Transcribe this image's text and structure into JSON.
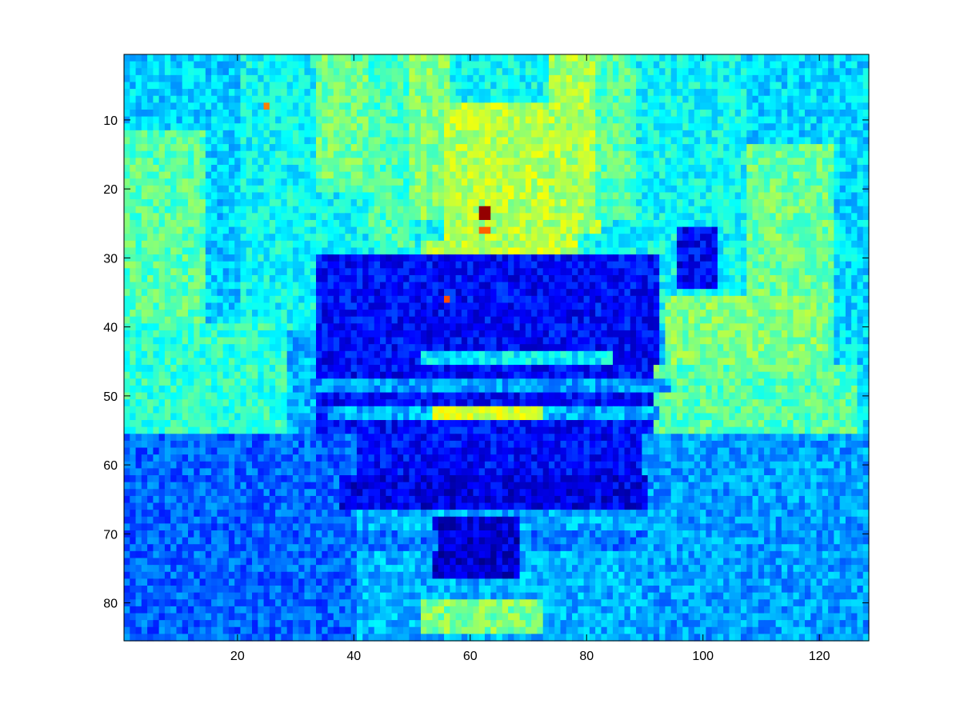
{
  "chart_data": {
    "type": "heatmap",
    "title": "",
    "xlabel": "",
    "ylabel": "",
    "colormap": "jet",
    "xlim": [
      0.5,
      128.5
    ],
    "ylim": [
      85.5,
      0.5
    ],
    "x_ticks": [
      20,
      40,
      60,
      80,
      100,
      120
    ],
    "y_ticks": [
      10,
      20,
      30,
      40,
      50,
      60,
      70,
      80
    ],
    "x_tick_labels": [
      "20",
      "40",
      "60",
      "80",
      "100",
      "120"
    ],
    "y_tick_labels": [
      "10",
      "20",
      "30",
      "40",
      "50",
      "60",
      "70",
      "80"
    ],
    "grid": false,
    "legend": "none",
    "grid_columns": 128,
    "grid_rows": 85,
    "value_range": [
      0,
      1
    ],
    "colors": {
      "axes_frame": "#000000",
      "background": "#ffffff",
      "low_value": "#00008f",
      "high_value": "#800000"
    },
    "scene": {
      "base_value": 0.3,
      "regions": [
        {
          "rows": [
            1,
            40
          ],
          "cols": [
            1,
            128
          ],
          "value": 0.38
        },
        {
          "rows": [
            1,
            85
          ],
          "cols": [
            1,
            20
          ],
          "value": 0.33
        },
        {
          "rows": [
            1,
            85
          ],
          "cols": [
            108,
            128
          ],
          "value": 0.34
        },
        {
          "rows": [
            1,
            20
          ],
          "cols": [
            34,
            43
          ],
          "value": 0.48
        },
        {
          "rows": [
            1,
            28
          ],
          "cols": [
            43,
            50
          ],
          "value": 0.44
        },
        {
          "rows": [
            1,
            24
          ],
          "cols": [
            50,
            56
          ],
          "value": 0.5
        },
        {
          "rows": [
            8,
            30
          ],
          "cols": [
            56,
            78
          ],
          "value": 0.55
        },
        {
          "rows": [
            28,
            38
          ],
          "cols": [
            52,
            74
          ],
          "value": 0.56
        },
        {
          "rows": [
            1,
            26
          ],
          "cols": [
            74,
            82
          ],
          "value": 0.54
        },
        {
          "rows": [
            1,
            24
          ],
          "cols": [
            82,
            88
          ],
          "value": 0.46
        },
        {
          "rows": [
            12,
            40
          ],
          "cols": [
            1,
            14
          ],
          "value": 0.46
        },
        {
          "rows": [
            14,
            46
          ],
          "cols": [
            108,
            122
          ],
          "value": 0.48
        },
        {
          "rows": [
            26,
            34
          ],
          "cols": [
            96,
            102
          ],
          "value": 0.12
        },
        {
          "rows": [
            30,
            62
          ],
          "cols": [
            34,
            92
          ],
          "value": 0.13
        },
        {
          "rows": [
            36,
            48
          ],
          "cols": [
            94,
            120
          ],
          "value": 0.5
        },
        {
          "rows": [
            40,
            56
          ],
          "cols": [
            1,
            28
          ],
          "value": 0.42
        },
        {
          "rows": [
            46,
            58
          ],
          "cols": [
            92,
            126
          ],
          "value": 0.46
        },
        {
          "rows": [
            44,
            45
          ],
          "cols": [
            52,
            84
          ],
          "value": 0.36
        },
        {
          "rows": [
            48,
            49
          ],
          "cols": [
            30,
            94
          ],
          "value": 0.28
        },
        {
          "rows": [
            52,
            53
          ],
          "cols": [
            36,
            92
          ],
          "value": 0.3
        },
        {
          "rows": [
            52,
            53
          ],
          "cols": [
            54,
            72
          ],
          "value": 0.58
        },
        {
          "rows": [
            56,
            85
          ],
          "cols": [
            1,
            40
          ],
          "value": 0.22
        },
        {
          "rows": [
            56,
            85
          ],
          "cols": [
            90,
            128
          ],
          "value": 0.28
        },
        {
          "rows": [
            62,
            66
          ],
          "cols": [
            38,
            90
          ],
          "value": 0.1
        },
        {
          "rows": [
            68,
            76
          ],
          "cols": [
            54,
            68
          ],
          "value": 0.08
        },
        {
          "rows": [
            70,
            72
          ],
          "cols": [
            40,
            54
          ],
          "value": 0.24
        },
        {
          "rows": [
            70,
            72
          ],
          "cols": [
            70,
            90
          ],
          "value": 0.24
        },
        {
          "rows": [
            80,
            84
          ],
          "cols": [
            52,
            72
          ],
          "value": 0.5
        },
        {
          "rows": [
            23,
            24
          ],
          "cols": [
            62,
            63
          ],
          "value": 0.98
        },
        {
          "rows": [
            26,
            26
          ],
          "cols": [
            62,
            63
          ],
          "value": 0.78
        },
        {
          "rows": [
            8,
            8
          ],
          "cols": [
            25,
            25
          ],
          "value": 0.75
        },
        {
          "rows": [
            36,
            36
          ],
          "cols": [
            56,
            56
          ],
          "value": 0.8
        }
      ]
    }
  }
}
